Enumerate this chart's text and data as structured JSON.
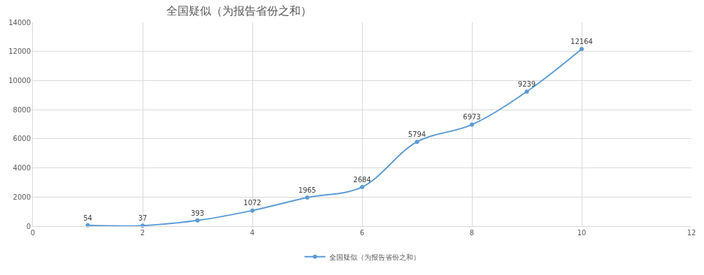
{
  "chart_data": {
    "type": "line",
    "title": "全国疑似（为报告省份之和）",
    "x": [
      1,
      2,
      3,
      4,
      5,
      6,
      7,
      8,
      9,
      10
    ],
    "series": [
      {
        "name": "全国疑似（为报告省份之和）",
        "color": "#5b9bd5",
        "values": [
          54,
          37,
          393,
          1072,
          1965,
          2684,
          5794,
          6973,
          9239,
          12164
        ]
      }
    ],
    "xlim": [
      0,
      12
    ],
    "xticks": [
      0,
      2,
      4,
      6,
      8,
      10,
      12
    ],
    "ylim": [
      0,
      14000
    ],
    "yticks": [
      0,
      2000,
      4000,
      6000,
      8000,
      10000,
      12000,
      14000
    ],
    "grid": true,
    "legend": "bottom",
    "marker": "circle",
    "line_style": "solid",
    "data_labels": true
  }
}
